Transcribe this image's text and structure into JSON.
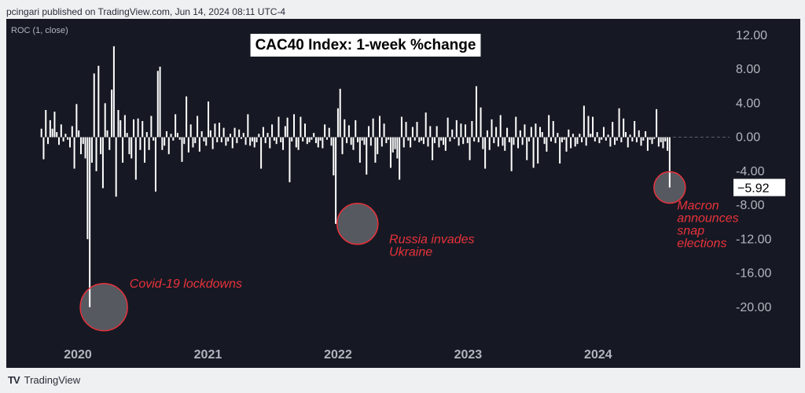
{
  "header": {
    "published": "pcingari published on TradingView.com, Jun 14, 2024 08:11 UTC-4"
  },
  "footer": {
    "logo_glyph": "TV",
    "brand": "TradingView"
  },
  "colors": {
    "background": "#161923",
    "bar": "#ffffff",
    "accent": "#e8323c",
    "axis_text": "#b2b5be",
    "zero_line": "#5d606b"
  },
  "chart_data": {
    "type": "bar",
    "indicator_label": "ROC (1, close)",
    "title": "CAC40 Index: 1-week %change",
    "x_start": 2019.72,
    "x_end": 2024.55,
    "xlim": [
      2019.45,
      2024.98
    ],
    "ylim": [
      -24,
      13
    ],
    "y_ticks": [
      "12.00",
      "8.00",
      "4.00",
      "0.00",
      "-4.00",
      "-8.00",
      "-12.00",
      "-16.00",
      "-20.00"
    ],
    "y_tick_values": [
      12,
      8,
      4,
      0,
      -4,
      -8,
      -12,
      -16,
      -20
    ],
    "x_ticks": [
      "2020",
      "2021",
      "2022",
      "2023",
      "2024"
    ],
    "x_tick_values": [
      2020,
      2021,
      2022,
      2023,
      2024
    ],
    "last_value_label": "−5.92",
    "last_value": -5.92,
    "values": [
      1,
      -2.6,
      3.2,
      -0.8,
      2,
      1,
      3,
      0.6,
      -0.9,
      1.5,
      -0.5,
      0.4,
      -0.3,
      -1.2,
      1.3,
      -3.7,
      3.9,
      0.8,
      -2,
      -0.8,
      -2.5,
      -12,
      -20,
      -3,
      7.5,
      -4,
      8.4,
      -2,
      -6,
      4,
      0.8,
      -1.5,
      5.6,
      10.7,
      -7,
      3.2,
      2,
      -3,
      2.6,
      0.5,
      -2,
      -2.5,
      2.1,
      -5,
      2.2,
      -1.5,
      1.9,
      -3,
      0.6,
      -1.5,
      2.5,
      -0.4,
      -6.4,
      7.8,
      8.3,
      -1.5,
      -1,
      0.7,
      -2,
      0.4,
      -0.4,
      2.7,
      0.5,
      -0.3,
      -2.9,
      -0.8,
      4.8,
      -1.8,
      1.5,
      -1.2,
      -0.7,
      2.5,
      -1.7,
      0.7,
      -0.5,
      -1,
      4.2,
      0.8,
      -1.4,
      1.6,
      -0.6,
      1.7,
      -0.6,
      1.1,
      -1,
      -0.5,
      0.4,
      -1.3,
      1.1,
      -0.7,
      0.9,
      -0.2,
      0.5,
      -0.9,
      2.7,
      -1,
      -0.5,
      -1.2,
      -0.6,
      0.4,
      -3.7,
      1.2,
      -0.7,
      0.5,
      -1.3,
      1.5,
      -0.4,
      -0.8,
      2.4,
      -0.6,
      -1.5,
      1.3,
      2.3,
      -5.3,
      -0.5,
      2.7,
      -1.2,
      -1.5,
      2.4,
      -0.5,
      1.6,
      -0.8,
      -0.6,
      -0.3,
      0.5,
      -0.7,
      -1.2,
      -0.4,
      -1.3,
      1.5,
      -0.3,
      1.1,
      -1,
      -4.5,
      -10.2,
      3.4,
      5.7,
      -2,
      2.1,
      -0.7,
      1.4,
      -0.9,
      -1.5,
      2,
      -0.6,
      -3,
      -0.4,
      -0.9,
      -4.4,
      1.3,
      -1,
      2.2,
      -3,
      -2,
      2.5,
      -1.1,
      1.6,
      -0.7,
      -0.3,
      -3.6,
      -1.8,
      -1.4,
      -2.5,
      -5,
      2.4,
      -1.2,
      1.8,
      -0.4,
      -1.2,
      1.2,
      -0.4,
      1.8,
      -0.6,
      -0.4,
      -0.8,
      2.9,
      -1.1,
      1.3,
      -2.7,
      -0.7,
      1.3,
      -1.2,
      -0.4,
      -0.9,
      -1.6,
      2.3,
      -0.5,
      0.9,
      -0.2,
      2,
      -1,
      1.6,
      -0.8,
      1.5,
      -0.7,
      -2.7,
      1.9,
      -0.5,
      6,
      -0.6,
      3.5,
      -1.4,
      -3.7,
      0.8,
      -1.5,
      2.1,
      -0.7,
      1.2,
      -1.1,
      2.6,
      -1,
      -1.6,
      1.1,
      -0.6,
      -4,
      -0.9,
      2.4,
      -1.3,
      0.8,
      -0.9,
      1.5,
      -2.7,
      -0.5,
      1.2,
      -3.6,
      1.6,
      -3.1,
      1.2,
      0.6,
      -0.8,
      -1.7,
      2.6,
      -0.5,
      1.9,
      -0.7,
      0.5,
      -3.1,
      -0.6,
      -0.3,
      -1.7,
      0.9,
      -1.3,
      0.4,
      -1.1,
      -0.8,
      0.4,
      -0.6,
      3.7,
      -1,
      2.5,
      0.4,
      2.4,
      -0.5,
      0.6,
      -0.7,
      -0.3,
      1.2,
      -0.4,
      0.3,
      -1.1,
      1.8,
      -0.9,
      -0.4,
      3.4,
      -0.6,
      2.2,
      0.6,
      -1.2,
      0.3,
      -0.5,
      1.9,
      -0.6,
      0.8,
      -1,
      -0.4,
      0.7,
      -1.6,
      -0.3,
      -0.8,
      -0.2,
      3.3,
      -1.1,
      -0.6,
      -1.3,
      -0.5,
      -1.6,
      -5.92
    ],
    "annotations": [
      {
        "label_lines": [
          "Covid-19 lockdowns"
        ],
        "x": 2020.2,
        "y": -20,
        "text_x": 2020.18,
        "text_y": -17.7,
        "anchor": "right"
      },
      {
        "label_lines": [
          "Russia invades",
          "Ukraine"
        ],
        "x": 2022.15,
        "y": -10.2,
        "text_x": 2022.2,
        "text_y": -12.5,
        "anchor": "right"
      },
      {
        "label_lines": [
          "Macron",
          "announces",
          "snap",
          "elections"
        ],
        "x": 2024.55,
        "y": -5.92,
        "text_x": 2024.45,
        "text_y": -8.5,
        "anchor": "right"
      }
    ]
  }
}
